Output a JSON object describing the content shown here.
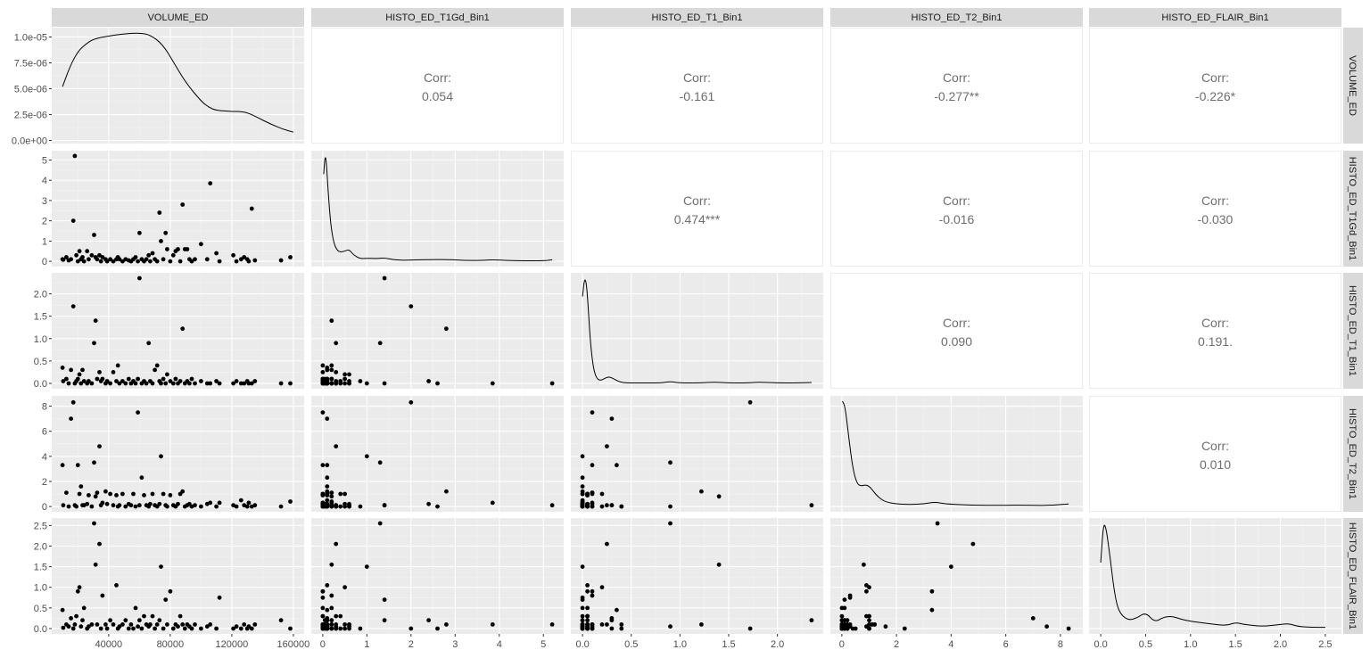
{
  "chart_data": {
    "type": "scatter-matrix",
    "variables": [
      "VOLUME_ED",
      "HISTO_ED_T1Gd_Bin1",
      "HISTO_ED_T1_Bin1",
      "HISTO_ED_T2_Bin1",
      "HISTO_ED_FLAIR_Bin1"
    ],
    "corr_label": "Corr:",
    "correlations": [
      {
        "row": 0,
        "col": 1,
        "value": "0.054"
      },
      {
        "row": 0,
        "col": 2,
        "value": "-0.161"
      },
      {
        "row": 0,
        "col": 3,
        "value": "-0.277**"
      },
      {
        "row": 0,
        "col": 4,
        "value": "-0.226*"
      },
      {
        "row": 1,
        "col": 2,
        "value": "0.474***"
      },
      {
        "row": 1,
        "col": 3,
        "value": "-0.016"
      },
      {
        "row": 1,
        "col": 4,
        "value": "-0.030"
      },
      {
        "row": 2,
        "col": 3,
        "value": "0.090"
      },
      {
        "row": 2,
        "col": 4,
        "value": "0.191."
      },
      {
        "row": 3,
        "col": 4,
        "value": "0.010"
      }
    ],
    "x_ticks": [
      {
        "values": [
          40000,
          80000,
          120000,
          160000
        ],
        "labels": [
          "40000",
          "80000",
          "120000",
          "160000"
        ]
      },
      {
        "values": [
          0,
          1,
          2,
          3,
          4,
          5
        ],
        "labels": [
          "0",
          "1",
          "2",
          "3",
          "4",
          "5"
        ]
      },
      {
        "values": [
          0,
          0.5,
          1,
          1.5,
          2
        ],
        "labels": [
          "0.0",
          "0.5",
          "1.0",
          "1.5",
          "2.0"
        ]
      },
      {
        "values": [
          0,
          2,
          4,
          6,
          8
        ],
        "labels": [
          "0",
          "2",
          "4",
          "6",
          "8"
        ]
      },
      {
        "values": [
          0,
          0.5,
          1,
          1.5,
          2,
          2.5
        ],
        "labels": [
          "0.0",
          "0.5",
          "1.0",
          "1.5",
          "2.0",
          "2.5"
        ]
      }
    ],
    "y_ticks": [
      {
        "values": [
          0,
          2.5e-06,
          5e-06,
          7.5e-06,
          1e-05
        ],
        "labels": [
          "0.0e+00",
          "2.5e-06",
          "5.0e-06",
          "7.5e-06",
          "1.0e-05"
        ]
      },
      {
        "values": [
          0,
          1,
          2,
          3,
          4,
          5
        ],
        "labels": [
          "0",
          "1",
          "2",
          "3",
          "4",
          "5"
        ]
      },
      {
        "values": [
          0,
          0.5,
          1,
          1.5,
          2
        ],
        "labels": [
          "0.0",
          "0.5",
          "1.0",
          "1.5",
          "2.0"
        ]
      },
      {
        "values": [
          0,
          2,
          4,
          6,
          8
        ],
        "labels": [
          "0",
          "2",
          "4",
          "6",
          "8"
        ]
      },
      {
        "values": [
          0,
          0.5,
          1,
          1.5,
          2,
          2.5
        ],
        "labels": [
          "0.0",
          "0.5",
          "1.0",
          "1.5",
          "2.0",
          "2.5"
        ]
      }
    ],
    "axis_ranges": [
      [
        3000,
        167000
      ],
      [
        -0.26,
        5.46
      ],
      [
        -0.12,
        2.47
      ],
      [
        -0.42,
        8.82
      ],
      [
        -0.13,
        2.68
      ]
    ],
    "density_ylim": [
      -3e-07,
      1.09e-05
    ],
    "densities": [
      {
        "x": [
          10000,
          15000,
          20000,
          25000,
          30000,
          40000,
          50000,
          60000,
          67000,
          75000,
          82000,
          90000,
          100000,
          105000,
          110000,
          120000,
          125000,
          130000,
          137000,
          145000,
          153000,
          160000
        ],
        "y": [
          5.2e-06,
          7.2e-06,
          8.6e-06,
          9.3e-06,
          9.8e-06,
          1.01e-05,
          1.03e-05,
          1.04e-05,
          1.02e-05,
          9.3e-06,
          7.6e-06,
          5.6e-06,
          3.8e-06,
          3.2e-06,
          2.9e-06,
          2.8e-06,
          2.8e-06,
          2.7e-06,
          2.2e-06,
          1.6e-06,
          1.1e-06,
          8e-07
        ]
      },
      {
        "x": [
          0.02,
          0.05,
          0.08,
          0.12,
          0.18,
          0.25,
          0.32,
          0.4,
          0.5,
          0.6,
          0.7,
          0.85,
          1.0,
          1.2,
          1.4,
          1.6,
          1.8,
          2.0,
          2.4,
          2.8,
          3.2,
          3.6,
          3.9,
          4.2,
          4.6,
          5.0,
          5.2
        ],
        "y": [
          4.3,
          5.2,
          5.0,
          3.5,
          1.8,
          0.9,
          0.55,
          0.45,
          0.5,
          0.58,
          0.3,
          0.12,
          0.15,
          0.13,
          0.17,
          0.08,
          0.05,
          0.06,
          0.08,
          0.09,
          0.04,
          0.04,
          0.08,
          0.03,
          0.02,
          0.02,
          0.07
        ]
      },
      {
        "x": [
          0.0,
          0.02,
          0.04,
          0.06,
          0.08,
          0.11,
          0.14,
          0.18,
          0.22,
          0.27,
          0.32,
          0.38,
          0.45,
          0.6,
          0.8,
          0.9,
          1.0,
          1.2,
          1.35,
          1.5,
          1.7,
          1.8,
          2.0,
          2.2,
          2.35
        ],
        "y": [
          1.9,
          2.3,
          2.2,
          1.6,
          0.9,
          0.35,
          0.12,
          0.06,
          0.1,
          0.15,
          0.1,
          0.03,
          0.01,
          0.01,
          0.01,
          0.04,
          0.01,
          0.01,
          0.03,
          0.01,
          0.01,
          0.03,
          0.01,
          0.01,
          0.02
        ]
      },
      {
        "x": [
          0.02,
          0.12,
          0.25,
          0.4,
          0.55,
          0.7,
          0.85,
          1.0,
          1.15,
          1.35,
          1.6,
          2.0,
          2.5,
          3.0,
          3.4,
          3.8,
          4.5,
          5.5,
          6.5,
          7.5,
          8.3
        ],
        "y": [
          8.3,
          7.9,
          5.5,
          3.0,
          1.8,
          1.6,
          1.7,
          1.6,
          1.2,
          0.7,
          0.35,
          0.2,
          0.15,
          0.2,
          0.35,
          0.2,
          0.12,
          0.08,
          0.1,
          0.07,
          0.2
        ]
      },
      {
        "x": [
          0.0,
          0.03,
          0.06,
          0.1,
          0.15,
          0.2,
          0.3,
          0.4,
          0.5,
          0.6,
          0.7,
          0.8,
          0.9,
          1.0,
          1.2,
          1.4,
          1.5,
          1.6,
          1.8,
          2.0,
          2.1,
          2.2,
          2.35,
          2.5
        ],
        "y": [
          1.6,
          2.55,
          2.45,
          1.8,
          0.9,
          0.4,
          0.2,
          0.25,
          0.4,
          0.15,
          0.28,
          0.3,
          0.22,
          0.18,
          0.12,
          0.07,
          0.15,
          0.1,
          0.05,
          0.1,
          0.12,
          0.05,
          0.03,
          0.03
        ]
      }
    ],
    "observations": {
      "note": "columns: VOLUME_ED, HISTO_ED_T1Gd_Bin1, HISTO_ED_T1_Bin1, HISTO_ED_T2_Bin1, HISTO_ED_FLAIR_Bin1",
      "rows": [
        [
          10000,
          0.1,
          0.35,
          3.3,
          0.45
        ],
        [
          10500,
          0.08,
          0.05,
          0.1,
          0.02
        ],
        [
          12500,
          0.2,
          0.1,
          1.1,
          0.1
        ],
        [
          14000,
          0.05,
          0.0,
          0.0,
          0.05
        ],
        [
          15500,
          0.1,
          0.3,
          7.0,
          0.25
        ],
        [
          17000,
          2.0,
          1.72,
          8.3,
          0.0
        ],
        [
          18000,
          5.2,
          0.0,
          0.1,
          0.1
        ],
        [
          19000,
          0.3,
          0.05,
          0.0,
          0.3
        ],
        [
          20000,
          0.0,
          0.1,
          3.3,
          0.9
        ],
        [
          21000,
          0.5,
          0.2,
          1.0,
          1.0
        ],
        [
          22000,
          0.1,
          0.0,
          1.6,
          0.05
        ],
        [
          23000,
          0.2,
          0.3,
          0.1,
          0.2
        ],
        [
          24000,
          0.0,
          0.05,
          0.1,
          0.5
        ],
        [
          26000,
          0.5,
          0.0,
          0.2,
          0.0
        ],
        [
          27000,
          0.1,
          0.05,
          0.9,
          0.05
        ],
        [
          29000,
          0.3,
          0.0,
          0.0,
          0.1
        ],
        [
          30500,
          1.3,
          0.9,
          3.5,
          2.55
        ],
        [
          31500,
          0.2,
          1.4,
          0.8,
          1.55
        ],
        [
          32500,
          0.1,
          0.1,
          1.1,
          0.1
        ],
        [
          34000,
          0.3,
          0.25,
          4.8,
          2.05
        ],
        [
          35000,
          0.0,
          0.05,
          0.1,
          0.0
        ],
        [
          36000,
          0.2,
          0.1,
          0.3,
          0.8
        ],
        [
          38000,
          0.1,
          0.0,
          1.2,
          0.1
        ],
        [
          39000,
          0.0,
          0.05,
          0.2,
          0.0
        ],
        [
          41000,
          0.1,
          0.0,
          1.0,
          0.2
        ],
        [
          43000,
          0.0,
          0.25,
          0.1,
          0.1
        ],
        [
          45000,
          0.1,
          0.05,
          0.9,
          1.05
        ],
        [
          46000,
          0.2,
          0.4,
          0.0,
          0.0
        ],
        [
          47000,
          0.1,
          0.0,
          0.1,
          0.05
        ],
        [
          49000,
          0.0,
          0.05,
          1.0,
          0.1
        ],
        [
          51000,
          0.1,
          0.0,
          0.0,
          0.2
        ],
        [
          53000,
          0.05,
          0.1,
          0.2,
          0.0
        ],
        [
          54500,
          0.0,
          0.0,
          0.1,
          0.1
        ],
        [
          56000,
          0.1,
          0.05,
          1.0,
          0.0
        ],
        [
          57500,
          0.2,
          0.0,
          0.0,
          0.5
        ],
        [
          59000,
          0.0,
          0.1,
          7.5,
          0.05
        ],
        [
          60000,
          1.4,
          2.35,
          0.1,
          0.2
        ],
        [
          61500,
          0.1,
          0.0,
          2.3,
          0.0
        ],
        [
          63000,
          0.0,
          0.05,
          0.9,
          0.3
        ],
        [
          64500,
          0.1,
          0.0,
          0.1,
          0.1
        ],
        [
          66000,
          0.3,
          0.9,
          0.0,
          0.05
        ],
        [
          67000,
          0.0,
          0.05,
          0.2,
          0.1
        ],
        [
          68500,
          0.4,
          0.0,
          1.0,
          0.3
        ],
        [
          70000,
          0.1,
          0.3,
          0.1,
          0.0
        ],
        [
          71500,
          0.0,
          0.4,
          0.0,
          0.1
        ],
        [
          73000,
          2.4,
          0.05,
          0.2,
          0.2
        ],
        [
          74000,
          1.0,
          0.0,
          4.0,
          1.5
        ],
        [
          75500,
          0.1,
          0.1,
          1.0,
          0.0
        ],
        [
          77000,
          1.4,
          0.0,
          0.1,
          0.7
        ],
        [
          78000,
          0.6,
          0.2,
          0.0,
          0.1
        ],
        [
          80000,
          0.0,
          0.05,
          0.9,
          0.9
        ],
        [
          82000,
          0.3,
          0.0,
          0.1,
          0.0
        ],
        [
          83500,
          0.5,
          0.1,
          0.0,
          0.1
        ],
        [
          85000,
          0.6,
          0.0,
          0.2,
          0.05
        ],
        [
          86500,
          0.0,
          0.05,
          1.0,
          0.3
        ],
        [
          88000,
          2.8,
          1.22,
          1.2,
          0.1
        ],
        [
          89500,
          0.6,
          0.0,
          0.0,
          0.0
        ],
        [
          91000,
          0.6,
          0.05,
          0.1,
          0.1
        ],
        [
          92500,
          0.1,
          0.0,
          0.2,
          0.05
        ],
        [
          94000,
          0.0,
          0.1,
          0.0,
          0.0
        ],
        [
          96000,
          0.1,
          0.0,
          0.1,
          0.1
        ],
        [
          100000,
          0.85,
          0.05,
          0.0,
          0.0
        ],
        [
          104000,
          0.1,
          0.0,
          0.2,
          0.05
        ],
        [
          106000,
          3.85,
          0.0,
          0.3,
          0.1
        ],
        [
          110000,
          0.4,
          0.05,
          0.0,
          0.0
        ],
        [
          112000,
          0.0,
          0.0,
          0.3,
          0.75
        ],
        [
          121000,
          0.3,
          0.0,
          0.1,
          0.0
        ],
        [
          123000,
          0.0,
          0.05,
          0.0,
          0.05
        ],
        [
          126000,
          0.1,
          0.0,
          0.5,
          0.0
        ],
        [
          128000,
          0.2,
          0.0,
          0.1,
          0.1
        ],
        [
          130000,
          0.1,
          0.05,
          0.0,
          0.0
        ],
        [
          131000,
          0.0,
          0.0,
          0.3,
          0.05
        ],
        [
          133000,
          2.6,
          0.0,
          0.0,
          0.0
        ],
        [
          135000,
          0.05,
          0.05,
          0.1,
          0.1
        ],
        [
          152000,
          0.05,
          0.0,
          0.0,
          0.2
        ],
        [
          158000,
          0.2,
          0.0,
          0.4,
          0.0
        ]
      ]
    }
  }
}
